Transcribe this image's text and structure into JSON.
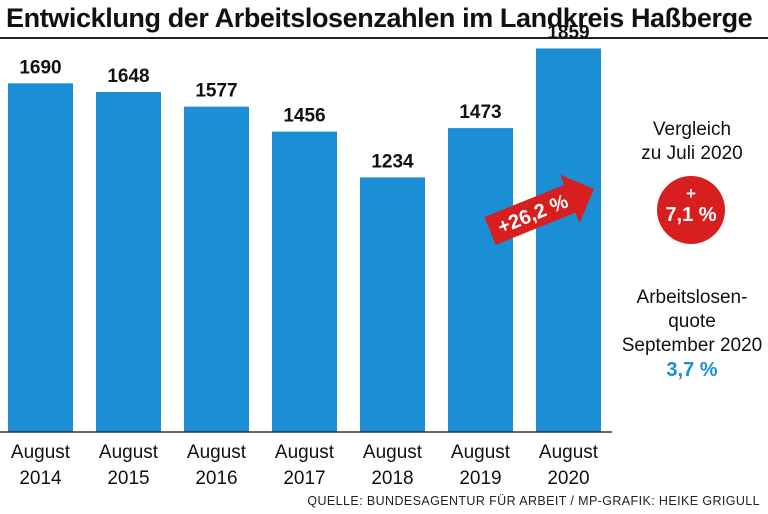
{
  "header": {
    "title": "Entwicklung der Arbeitslosenzahlen im Landkreis Haßberge"
  },
  "chart_data": {
    "type": "bar",
    "title": "Entwicklung der Arbeitslosenzahlen im Landkreis Haßberge",
    "xlabel": "",
    "ylabel": "",
    "categories": [
      [
        "August",
        "2014"
      ],
      [
        "August",
        "2015"
      ],
      [
        "August",
        "2016"
      ],
      [
        "August",
        "2017"
      ],
      [
        "August",
        "2018"
      ],
      [
        "August",
        "2019"
      ],
      [
        "August",
        "2020"
      ]
    ],
    "values": [
      1690,
      1648,
      1577,
      1456,
      1234,
      1473,
      1859
    ],
    "value_labels": [
      "1690",
      "1648",
      "1577",
      "1456",
      "1234",
      "1473",
      "1859"
    ],
    "ylim": [
      0,
      1900
    ],
    "grid": false,
    "colors": {
      "bar": "#1b8ed6",
      "arrow": "#d71f1f",
      "accent_text": "#1b8ed6"
    },
    "annotation": {
      "text": "+26,2 %",
      "icon": "arrow-right-icon"
    }
  },
  "side": {
    "compare_line1": "Vergleich",
    "compare_line2": "zu Juli 2020",
    "circle_plus": "+",
    "circle_value": "7,1 %",
    "quote_line1": "Arbeitslosen-",
    "quote_line2": "quote",
    "quote_line3": "September 2020",
    "quote_value": "3,7 %"
  },
  "footer": {
    "source": "QUELLE: BUNDESAGENTUR FÜR ARBEIT / MP-GRAFIK: HEIKE GRIGULL"
  }
}
